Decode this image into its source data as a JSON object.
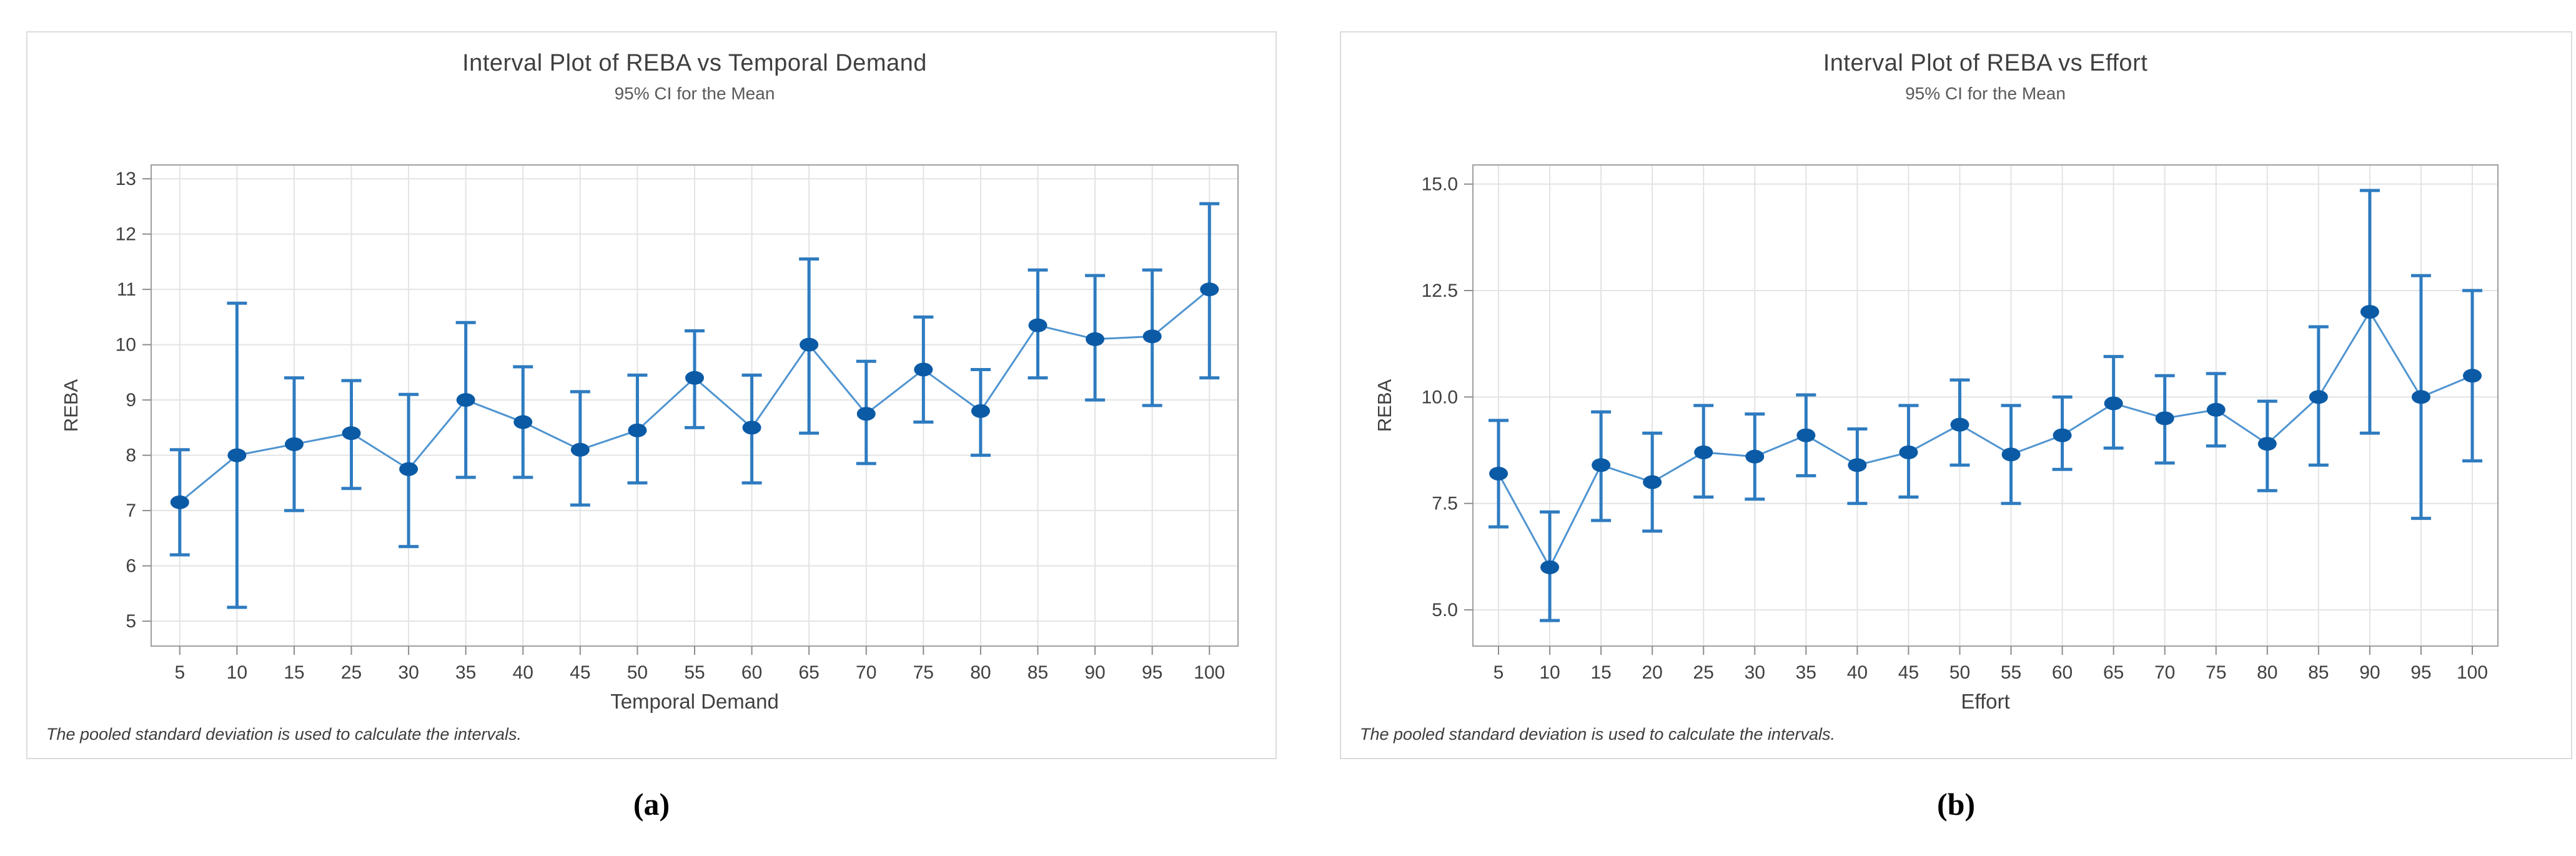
{
  "page": {
    "background": "#ffffff"
  },
  "captions": {
    "a": "(a)",
    "b": "(b)"
  },
  "chart_data": [
    {
      "type": "line",
      "subtype": "interval-plot-95ci",
      "title": "Interval Plot of REBA vs Temporal Demand",
      "subtitle": "95% CI for the Mean",
      "xlabel": "Temporal Demand",
      "ylabel": "REBA",
      "footnote": "The pooled standard deviation is used to calculate the intervals.",
      "caption": "(a)",
      "categories": [
        "5",
        "10",
        "15",
        "25",
        "30",
        "35",
        "40",
        "45",
        "50",
        "55",
        "60",
        "65",
        "70",
        "75",
        "80",
        "85",
        "90",
        "95",
        "100"
      ],
      "means": [
        7.15,
        8.0,
        8.2,
        8.4,
        7.75,
        9.0,
        8.6,
        8.1,
        8.45,
        9.4,
        8.5,
        10.0,
        8.75,
        9.55,
        8.8,
        10.35,
        10.1,
        10.15,
        11.0
      ],
      "ci_low": [
        6.2,
        5.25,
        7.0,
        7.4,
        6.35,
        7.6,
        7.6,
        7.1,
        7.5,
        8.5,
        7.5,
        8.4,
        7.85,
        8.6,
        8.0,
        9.4,
        9.0,
        8.9,
        9.4
      ],
      "ci_high": [
        8.1,
        10.75,
        9.4,
        9.35,
        9.1,
        10.4,
        9.6,
        9.15,
        9.45,
        10.25,
        9.45,
        11.55,
        9.7,
        10.5,
        9.55,
        11.35,
        11.25,
        11.35,
        12.55
      ],
      "yticks": [
        5,
        6,
        7,
        8,
        9,
        10,
        11,
        12,
        13
      ],
      "ytick_labels": [
        "5",
        "6",
        "7",
        "8",
        "9",
        "10",
        "11",
        "12",
        "13"
      ],
      "ylim": [
        4.55,
        13.25
      ],
      "grid": "both",
      "legend": "none",
      "colors": {
        "point": "#0b5aa5",
        "interval": "#2e7bc0",
        "line": "#4f94d0",
        "gridline": "#e3e3e3",
        "plot_border": "#9f9f9f",
        "tick": "#8c8c8c",
        "text": "#404040",
        "subtitle_text": "#595959",
        "panel_border": "#dcdcdc"
      }
    },
    {
      "type": "line",
      "subtype": "interval-plot-95ci",
      "title": "Interval Plot of REBA vs Effort",
      "subtitle": "95% CI for the Mean",
      "xlabel": "Effort",
      "ylabel": "REBA",
      "footnote": "The pooled standard deviation is used to calculate the intervals.",
      "caption": "(b)",
      "categories": [
        "5",
        "10",
        "15",
        "20",
        "25",
        "30",
        "35",
        "40",
        "45",
        "50",
        "55",
        "60",
        "65",
        "70",
        "75",
        "80",
        "85",
        "90",
        "95",
        "100"
      ],
      "means": [
        8.2,
        6.0,
        8.4,
        8.0,
        8.7,
        8.6,
        9.1,
        8.4,
        8.7,
        9.35,
        8.65,
        9.1,
        9.85,
        9.5,
        9.7,
        8.9,
        10.0,
        12.0,
        10.0,
        10.5
      ],
      "ci_low": [
        6.95,
        4.75,
        7.1,
        6.85,
        7.65,
        7.6,
        8.15,
        7.5,
        7.65,
        8.4,
        7.5,
        8.3,
        8.8,
        8.45,
        8.85,
        7.8,
        8.4,
        9.15,
        7.15,
        8.5
      ],
      "ci_high": [
        9.45,
        7.3,
        9.65,
        9.15,
        9.8,
        9.6,
        10.05,
        9.25,
        9.8,
        10.4,
        9.8,
        10.0,
        10.95,
        10.5,
        10.55,
        9.9,
        11.65,
        14.85,
        12.85,
        12.5
      ],
      "yticks": [
        5.0,
        7.5,
        10.0,
        12.5,
        15.0
      ],
      "ytick_labels": [
        "5.0",
        "7.5",
        "10.0",
        "12.5",
        "15.0"
      ],
      "ylim": [
        4.15,
        15.45
      ],
      "grid": "both",
      "legend": "none",
      "colors": {
        "point": "#0b5aa5",
        "interval": "#2e7bc0",
        "line": "#4f94d0",
        "gridline": "#e3e3e3",
        "plot_border": "#9f9f9f",
        "tick": "#8c8c8c",
        "text": "#404040",
        "subtitle_text": "#595959",
        "panel_border": "#dcdcdc"
      }
    }
  ]
}
